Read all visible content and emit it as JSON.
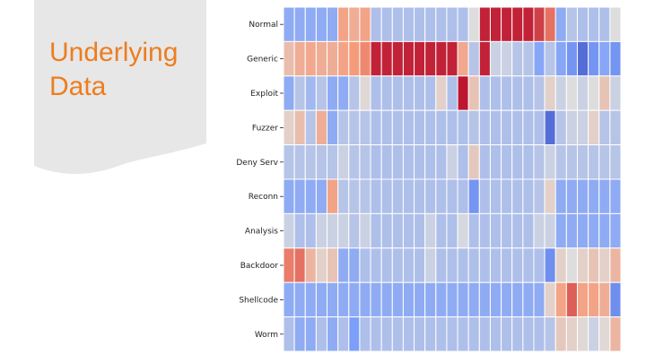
{
  "slide": {
    "title_line1": "Underlying",
    "title_line2": "Data",
    "title_color": "#ed7d1f",
    "panel_color": "#e7e7e7"
  },
  "chart_data": {
    "type": "heatmap",
    "title": "",
    "xlabel": "",
    "ylabel": "",
    "colormap": "coolwarm",
    "value_range": [
      0,
      1
    ],
    "legend": "none",
    "x_tick_labels": "none",
    "grid": "white cell borders",
    "rows": [
      "Normal",
      "Generic",
      "Exploit",
      "Fuzzer",
      "Deny Serv",
      "Reconn",
      "Analysis",
      "Backdoor",
      "Shellcode",
      "Worm"
    ],
    "values": [
      [
        0.3,
        0.3,
        0.3,
        0.3,
        0.3,
        0.72,
        0.68,
        0.72,
        0.38,
        0.38,
        0.38,
        0.38,
        0.38,
        0.38,
        0.38,
        0.38,
        0.38,
        0.5,
        0.95,
        0.95,
        0.95,
        0.95,
        0.95,
        0.9,
        0.82,
        0.3,
        0.4,
        0.38,
        0.38,
        0.38,
        0.5
      ],
      [
        0.62,
        0.68,
        0.7,
        0.68,
        0.68,
        0.72,
        0.75,
        0.78,
        0.95,
        0.95,
        0.95,
        0.95,
        0.95,
        0.95,
        0.95,
        0.95,
        0.7,
        0.4,
        0.95,
        0.45,
        0.45,
        0.4,
        0.4,
        0.28,
        0.4,
        0.28,
        0.22,
        0.1,
        0.22,
        0.28,
        0.22
      ],
      [
        0.3,
        0.4,
        0.35,
        0.4,
        0.3,
        0.3,
        0.4,
        0.52,
        0.38,
        0.38,
        0.38,
        0.38,
        0.38,
        0.38,
        0.55,
        0.38,
        0.97,
        0.6,
        0.38,
        0.38,
        0.38,
        0.38,
        0.38,
        0.4,
        0.55,
        0.45,
        0.5,
        0.45,
        0.5,
        0.6,
        0.45
      ],
      [
        0.55,
        0.62,
        0.4,
        0.68,
        0.3,
        0.4,
        0.4,
        0.4,
        0.38,
        0.38,
        0.38,
        0.38,
        0.38,
        0.38,
        0.38,
        0.38,
        0.38,
        0.4,
        0.38,
        0.38,
        0.38,
        0.38,
        0.38,
        0.38,
        0.1,
        0.4,
        0.45,
        0.45,
        0.55,
        0.4,
        0.4
      ],
      [
        0.4,
        0.4,
        0.4,
        0.4,
        0.4,
        0.45,
        0.4,
        0.4,
        0.38,
        0.38,
        0.38,
        0.38,
        0.38,
        0.38,
        0.38,
        0.45,
        0.38,
        0.58,
        0.38,
        0.38,
        0.38,
        0.38,
        0.38,
        0.4,
        0.45,
        0.4,
        0.4,
        0.4,
        0.4,
        0.4,
        0.4
      ],
      [
        0.3,
        0.3,
        0.3,
        0.3,
        0.72,
        0.4,
        0.4,
        0.4,
        0.38,
        0.38,
        0.38,
        0.38,
        0.38,
        0.38,
        0.38,
        0.38,
        0.38,
        0.22,
        0.38,
        0.38,
        0.38,
        0.38,
        0.38,
        0.4,
        0.55,
        0.3,
        0.3,
        0.3,
        0.3,
        0.3,
        0.3
      ],
      [
        0.45,
        0.38,
        0.38,
        0.45,
        0.45,
        0.45,
        0.4,
        0.45,
        0.38,
        0.38,
        0.38,
        0.38,
        0.38,
        0.45,
        0.38,
        0.38,
        0.48,
        0.38,
        0.38,
        0.38,
        0.38,
        0.38,
        0.38,
        0.45,
        0.45,
        0.3,
        0.3,
        0.3,
        0.3,
        0.3,
        0.3
      ],
      [
        0.8,
        0.82,
        0.65,
        0.55,
        0.6,
        0.3,
        0.3,
        0.38,
        0.38,
        0.38,
        0.38,
        0.38,
        0.38,
        0.45,
        0.38,
        0.38,
        0.38,
        0.38,
        0.38,
        0.38,
        0.38,
        0.38,
        0.38,
        0.38,
        0.2,
        0.55,
        0.5,
        0.55,
        0.6,
        0.55,
        0.65
      ],
      [
        0.3,
        0.3,
        0.3,
        0.3,
        0.3,
        0.3,
        0.3,
        0.3,
        0.3,
        0.3,
        0.3,
        0.3,
        0.3,
        0.3,
        0.3,
        0.3,
        0.3,
        0.3,
        0.3,
        0.3,
        0.3,
        0.3,
        0.3,
        0.3,
        0.55,
        0.72,
        0.85,
        0.72,
        0.72,
        0.68,
        0.2
      ],
      [
        0.38,
        0.3,
        0.3,
        0.38,
        0.3,
        0.38,
        0.25,
        0.38,
        0.38,
        0.38,
        0.38,
        0.38,
        0.38,
        0.38,
        0.38,
        0.38,
        0.38,
        0.38,
        0.38,
        0.38,
        0.38,
        0.38,
        0.38,
        0.38,
        0.4,
        0.58,
        0.55,
        0.52,
        0.45,
        0.52,
        0.65
      ]
    ]
  }
}
